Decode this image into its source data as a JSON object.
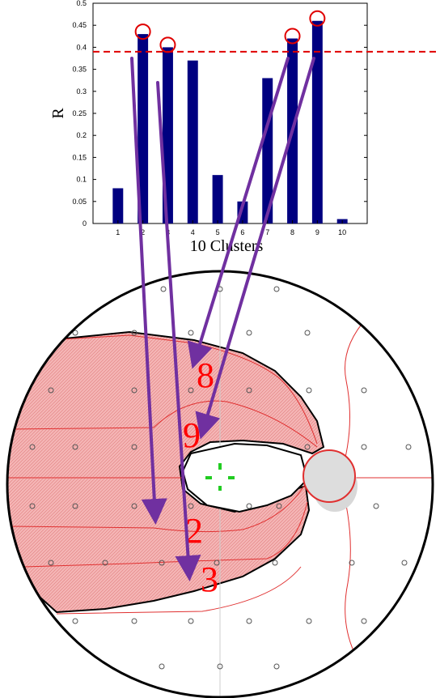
{
  "chart_data": {
    "type": "bar",
    "categories": [
      "1",
      "2",
      "3",
      "4",
      "5",
      "6",
      "7",
      "8",
      "9",
      "10"
    ],
    "values": [
      0.08,
      0.43,
      0.4,
      0.37,
      0.11,
      0.05,
      0.33,
      0.42,
      0.46,
      0.01
    ],
    "ylabel": "R",
    "xlabel": "10 Clusters",
    "ylim": [
      0,
      0.5
    ],
    "yticks": [
      "0",
      "0.05",
      "0.1",
      "0.15",
      "0.2",
      "0.25",
      "0.3",
      "0.35",
      "0.4",
      "0.45",
      "0.5"
    ],
    "threshold": 0.39,
    "highlighted_categories": [
      "2",
      "3",
      "8",
      "9"
    ],
    "bar_color": "#000080",
    "threshold_color": "#e00000"
  },
  "field_map": {
    "cluster_labels": [
      "8",
      "9",
      "2",
      "3"
    ],
    "region_fill": "#f2a8a8",
    "boundary_color": "#e03030",
    "arrow_color": "#7030a0",
    "fixation_color": "#22cc22"
  }
}
